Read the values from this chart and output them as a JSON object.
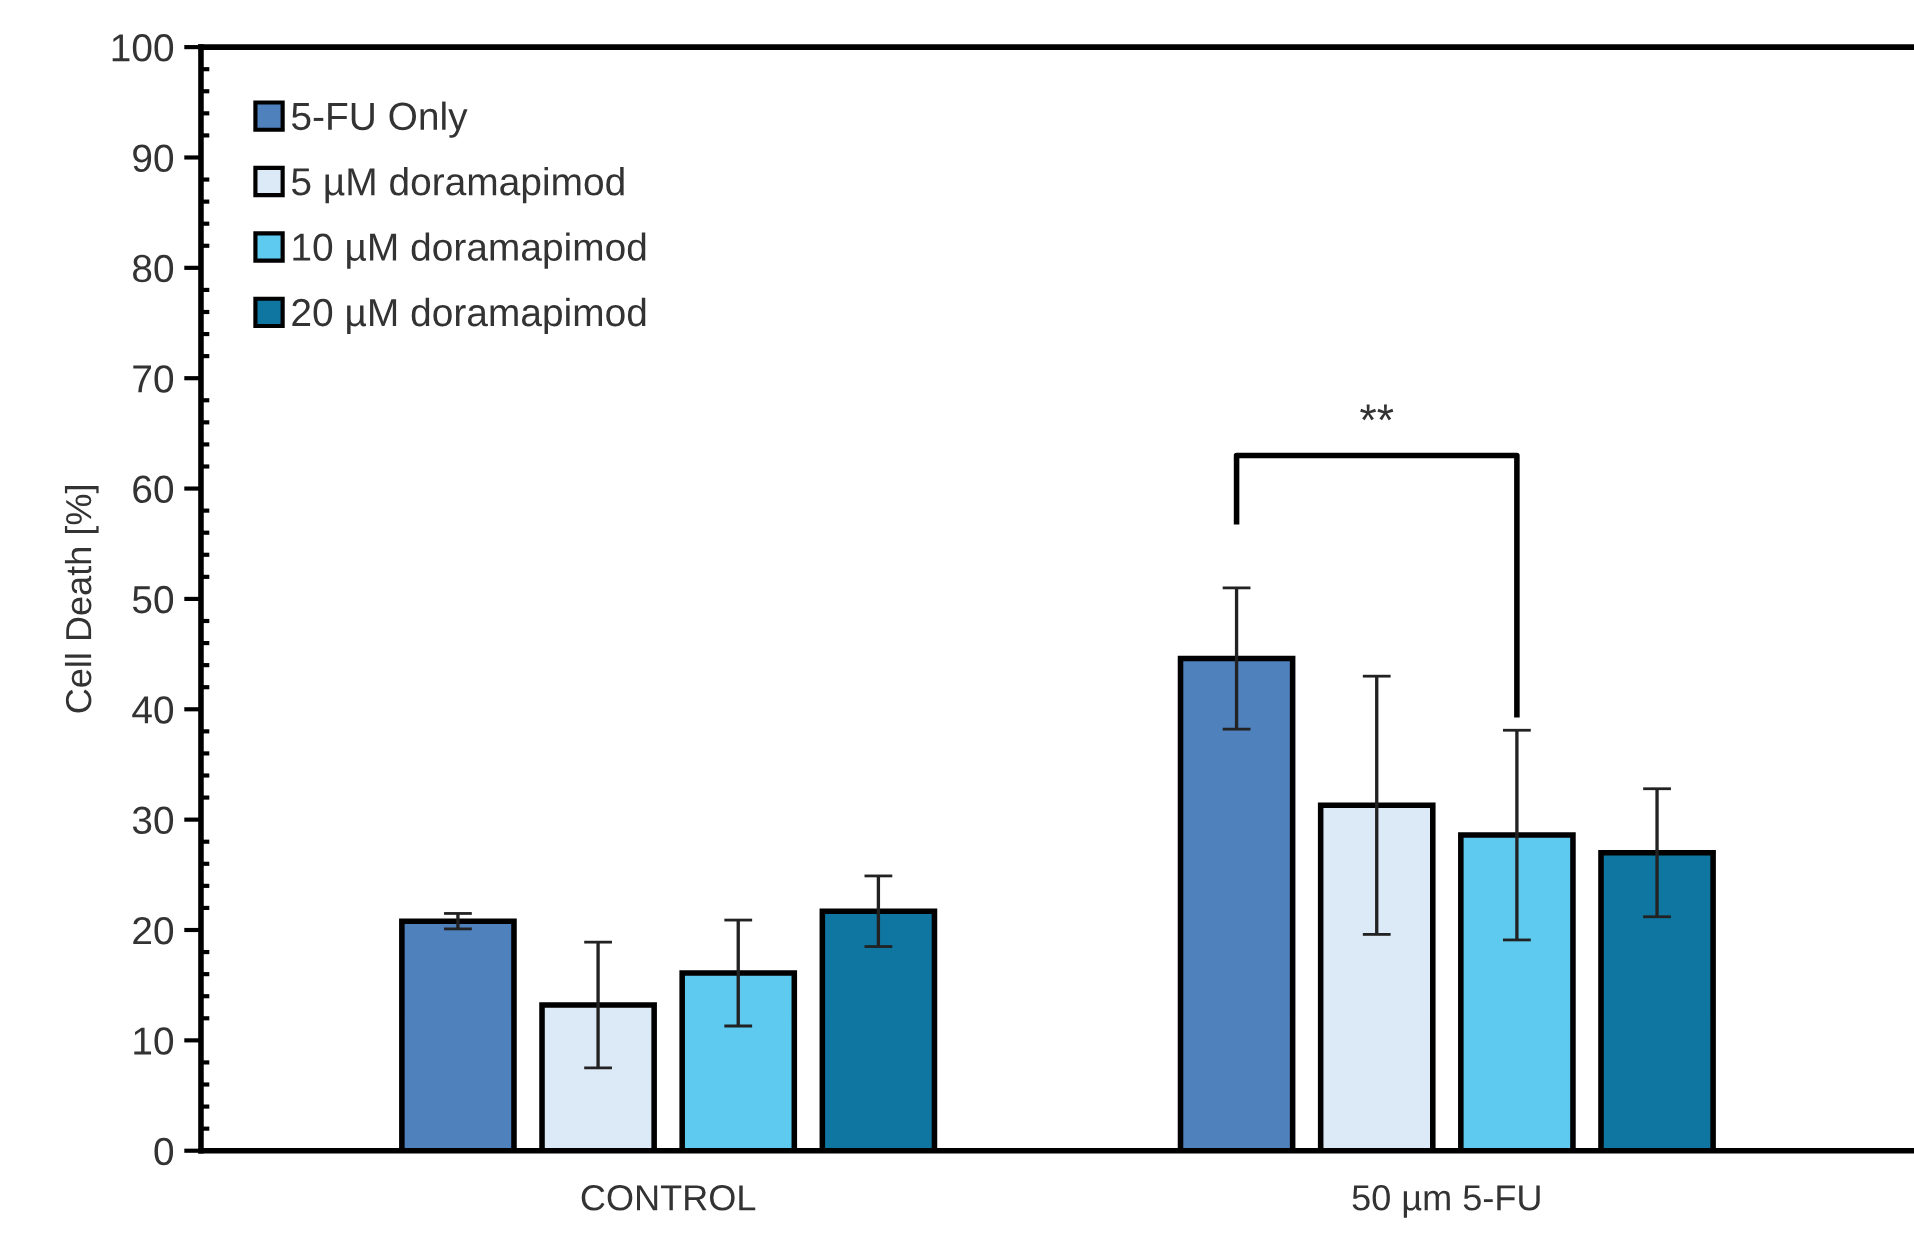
{
  "chart_data": {
    "type": "bar",
    "ylabel": "Cell Death [%]",
    "categories": [
      "CONTROL",
      "50 µm 5-FU"
    ],
    "series": [
      {
        "name": "5-FU Only",
        "color": "#4f81bd",
        "values": [
          20.8,
          44.6
        ],
        "errors": [
          0.7,
          6.4
        ]
      },
      {
        "name": "5 µM doramapimod",
        "color": "#dce9f6",
        "values": [
          13.2,
          31.3
        ],
        "errors": [
          5.7,
          11.7
        ]
      },
      {
        "name": "10 µM doramapimod",
        "color": "#5fcaf0",
        "values": [
          16.1,
          28.6
        ],
        "errors": [
          4.8,
          9.5
        ]
      },
      {
        "name": "20 µM doramapimod",
        "color": "#0e76a0",
        "values": [
          21.7,
          27.0
        ],
        "errors": [
          3.2,
          5.8
        ]
      }
    ],
    "ylim": [
      0,
      100
    ],
    "yticks": [
      0,
      10,
      20,
      30,
      40,
      50,
      60,
      70,
      80,
      90,
      100
    ],
    "annotations": [
      "**"
    ],
    "grid": false,
    "legend": "top left"
  }
}
